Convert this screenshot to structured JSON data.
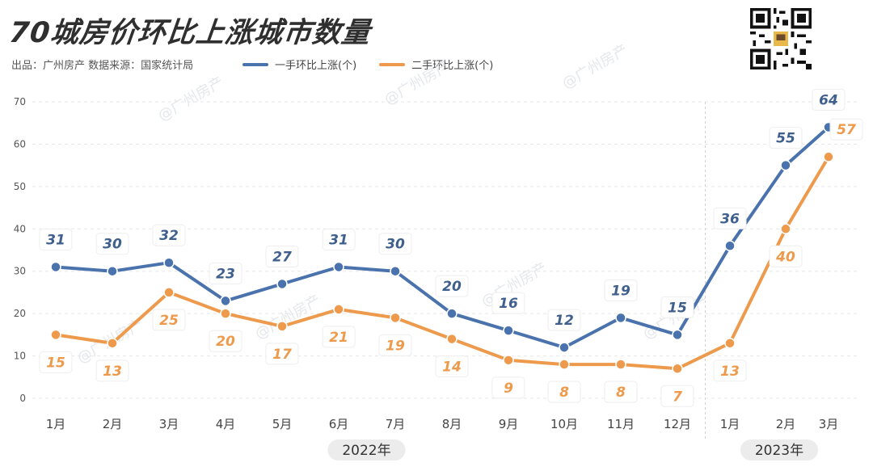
{
  "header": {
    "title": "70城房价环比上涨城市数量",
    "subtitle": "出品：广州房产  数据来源：国家统计局"
  },
  "watermark_text": "@广州房产",
  "colors": {
    "new_home": "#4a73ad",
    "second_hand": "#ee9a4d",
    "grid": "#e7e7e7",
    "label_bg": "#ffffff"
  },
  "chart_data": {
    "type": "line",
    "categories": [
      "1月",
      "2月",
      "3月",
      "4月",
      "5月",
      "6月",
      "7月",
      "8月",
      "9月",
      "10月",
      "11月",
      "12月",
      "1月",
      "2月",
      "3月"
    ],
    "year_groups": [
      {
        "label": "2022年",
        "start": 0,
        "end": 11
      },
      {
        "label": "2023年",
        "start": 12,
        "end": 14
      }
    ],
    "series": [
      {
        "name": "一手环比上涨(个)",
        "values": [
          31,
          30,
          32,
          23,
          27,
          31,
          30,
          20,
          16,
          12,
          19,
          15,
          36,
          55,
          64
        ]
      },
      {
        "name": "二手环比上涨(个)",
        "values": [
          15,
          13,
          25,
          20,
          17,
          21,
          19,
          14,
          9,
          8,
          8,
          7,
          13,
          40,
          57
        ]
      }
    ],
    "ylim": [
      0,
      70
    ],
    "yticks": [
      0,
      10,
      20,
      30,
      40,
      50,
      60,
      70
    ],
    "grid": true,
    "legend_position": "top"
  }
}
